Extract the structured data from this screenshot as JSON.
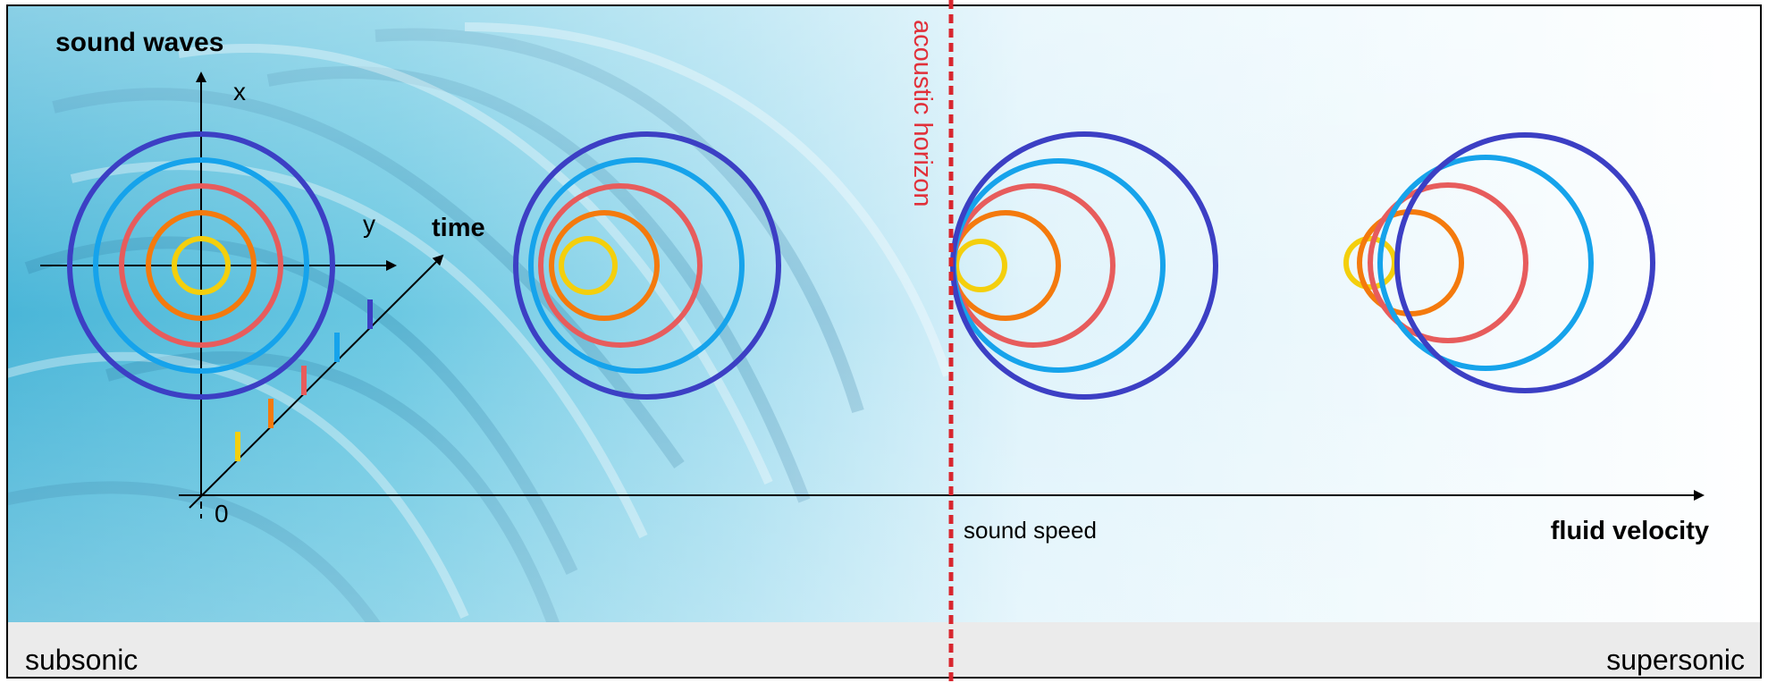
{
  "labels": {
    "title": "sound waves",
    "axis_x": "x",
    "axis_y": "y",
    "axis_time": "time",
    "origin": "0",
    "horizon": "acoustic horizon",
    "sound_speed": "sound speed",
    "velocity_axis": "fluid velocity",
    "subsonic": "subsonic",
    "supersonic": "supersonic"
  },
  "colors": {
    "ring_1": "#f4cf0c",
    "ring_2": "#f47a0d",
    "ring_3": "#e75c5c",
    "ring_4": "#16a3eb",
    "ring_5": "#3c3fc4",
    "horizon": "#d8262e",
    "horizon_label": "#e1303a"
  },
  "background": {
    "description_image": "waterfall"
  }
}
